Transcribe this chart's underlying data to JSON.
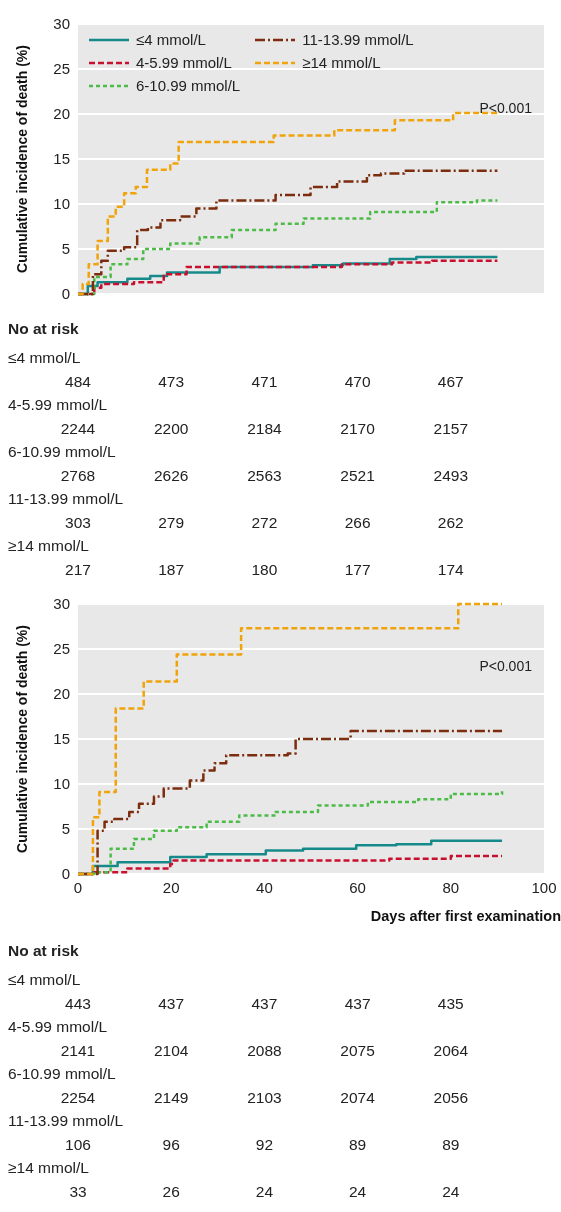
{
  "chart_data": [
    {
      "type": "step",
      "ylabel": "Cumulative incidence of death (%)",
      "xlim": [
        0,
        100
      ],
      "xticks": [
        {
          "value": 0,
          "label": null
        },
        {
          "value": 20,
          "label": null
        },
        {
          "value": 40,
          "label": null
        },
        {
          "value": 60,
          "label": null
        },
        {
          "value": 80,
          "label": null
        },
        {
          "value": 100,
          "label": null
        }
      ],
      "ylim": [
        0,
        30
      ],
      "yticks": [
        0,
        5,
        10,
        15,
        20,
        25,
        30
      ],
      "grid": "y",
      "legend": "top",
      "tick_labels": "y",
      "marker": "none",
      "series": [
        {
          "name": "≤4 mmol/L",
          "color": "#168a8a",
          "line_style": "solid",
          "x": [
            0,
            2.1,
            4.2,
            10.6,
            15.5,
            19.1,
            24,
            30.4,
            42,
            50.4,
            56.9,
            66.9,
            72.6,
            90
          ],
          "values": [
            0,
            0.9,
            1.3,
            1.7,
            2,
            2.4,
            2.4,
            3,
            3,
            3.2,
            3.4,
            3.9,
            4.1,
            4.1
          ]
        },
        {
          "name": "4-5.99 mmol/L",
          "color": "#c8102e",
          "line_style": "dashed",
          "x": [
            0,
            3.5,
            5,
            12,
            18.4,
            23.3,
            42.4,
            51,
            56.6,
            67.4,
            76,
            90
          ],
          "values": [
            0,
            0.7,
            1.1,
            1.3,
            2.2,
            3,
            3,
            3,
            3.3,
            3.5,
            3.7,
            3.7
          ]
        },
        {
          "name": "6-10.99 mmol/L",
          "color": "#4cbb47",
          "line_style": "dotted",
          "x": [
            0,
            0.7,
            3.5,
            7,
            10.6,
            14,
            19.8,
            26.1,
            33,
            42.4,
            48.4,
            62.7,
            77,
            85.6,
            90
          ],
          "values": [
            0,
            0,
            1.9,
            3.3,
            3.9,
            5,
            5.6,
            6.3,
            7.1,
            7.8,
            8.4,
            9.1,
            10.2,
            10.4,
            10.4
          ]
        },
        {
          "name": "11-13.99 mmol/L",
          "color": "#7b2d0e",
          "line_style": "dashdot",
          "x": [
            0,
            2.5,
            3.2,
            5,
            6.4,
            9.9,
            12.7,
            15,
            17.7,
            21.9,
            25.4,
            29.7,
            36,
            42.4,
            49.9,
            55.6,
            62,
            65,
            70,
            90
          ],
          "values": [
            0,
            0,
            2.2,
            3.7,
            4.8,
            5.2,
            7.1,
            7.4,
            8.2,
            8.6,
            9.5,
            10.4,
            10.4,
            11,
            11.9,
            12.5,
            13.2,
            13.4,
            13.7,
            13.7
          ]
        },
        {
          "name": "≥14 mmol/L",
          "color": "#f0a30a",
          "line_style": "dashed",
          "x": [
            0,
            1,
            2.3,
            4.2,
            6.4,
            8.1,
            9.9,
            12.4,
            14.8,
            19.8,
            21.6,
            33,
            42,
            55,
            68,
            80.5,
            90
          ],
          "values": [
            0,
            1.1,
            3.3,
            5.9,
            8.6,
            9.7,
            11.2,
            11.9,
            13.8,
            14.5,
            16.9,
            16.9,
            17.6,
            18.2,
            19.3,
            20.1,
            20.1
          ]
        }
      ],
      "annotations": [
        "P<0.001",
        "No at risk",
        "≤4 mmol/L",
        "484",
        "473",
        "471",
        "470",
        "467",
        "4-5.99 mmol/L",
        "2244",
        "2200",
        "2184",
        "2170",
        "2157",
        "6-10.99 mmol/L",
        "2768",
        "2626",
        "2563",
        "2521",
        "2493",
        "11-13.99 mmol/L",
        "303",
        "279",
        "272",
        "266",
        "262",
        "≥14 mmol/L",
        "217",
        "187",
        "180",
        "177",
        "174"
      ]
    },
    {
      "type": "step",
      "ylabel": "Cumulative incidence of death (%)",
      "xlabel": "Days after first examination",
      "xlim": [
        0,
        100
      ],
      "xticks": [
        0,
        20,
        40,
        60,
        80,
        100
      ],
      "ylim": [
        0,
        30
      ],
      "yticks": [
        0,
        5,
        10,
        15,
        20,
        25,
        30
      ],
      "grid": "y",
      "marker": "none",
      "series": [
        {
          "color": "#168a8a",
          "line_style": "solid",
          "x": [
            0,
            3.2,
            8.5,
            19.8,
            27.6,
            40.3,
            48.3,
            59.7,
            68.3,
            75.8,
            91
          ],
          "values": [
            0,
            0.9,
            1.3,
            1.9,
            2.2,
            2.6,
            2.8,
            3.2,
            3.3,
            3.7,
            3.7
          ]
        },
        {
          "color": "#c8102e",
          "line_style": "dashed",
          "x": [
            0,
            3.5,
            10.6,
            19.8,
            20.5,
            42.4,
            66.8,
            80,
            91
          ],
          "values": [
            0,
            0.2,
            0.6,
            1.1,
            1.5,
            1.5,
            1.7,
            2,
            2
          ]
        },
        {
          "color": "#4cbb47",
          "line_style": "dotted",
          "x": [
            0,
            3.5,
            7,
            12,
            16.3,
            21.2,
            27.6,
            34.6,
            42.4,
            51.5,
            62.2,
            73,
            80,
            91
          ],
          "values": [
            0,
            0.2,
            2.8,
            3.9,
            4.8,
            5.2,
            5.8,
            6.5,
            6.9,
            7.6,
            8,
            8.3,
            8.9,
            9.2
          ]
        },
        {
          "color": "#7b2d0e",
          "line_style": "dashdot",
          "x": [
            0,
            3.5,
            4.2,
            5.7,
            7.8,
            11,
            13.1,
            16.3,
            18.4,
            24,
            26.9,
            29.3,
            31.8,
            43,
            45,
            46.7,
            57.8,
            58.5,
            91
          ],
          "values": [
            0,
            0,
            4.8,
            5.8,
            6.1,
            6.9,
            7.8,
            8.6,
            9.5,
            10.4,
            11.5,
            12.3,
            13.2,
            13.2,
            13.4,
            15,
            15,
            15.9,
            15.9
          ]
        },
        {
          "color": "#f0a30a",
          "line_style": "dashed",
          "x": [
            0,
            2.5,
            3.2,
            4.6,
            8.1,
            14.1,
            21.2,
            35,
            81.6,
            91
          ],
          "values": [
            0,
            0,
            6.3,
            9.1,
            18.4,
            21.4,
            24.4,
            27.3,
            30,
            30
          ]
        }
      ],
      "annotations": [
        "P<0.001",
        "No at risk",
        "≤4 mmol/L",
        "443",
        "437",
        "437",
        "437",
        "435",
        "4-5.99 mmol/L",
        "2141",
        "2104",
        "2088",
        "2075",
        "2064",
        "6-10.99 mmol/L",
        "2254",
        "2149",
        "2103",
        "2074",
        "2056",
        "11-13.99 mmol/L",
        "106",
        "96",
        "92",
        "89",
        "89",
        "≥14 mmol/L",
        "33",
        "26",
        "24",
        "24",
        "24"
      ]
    }
  ]
}
